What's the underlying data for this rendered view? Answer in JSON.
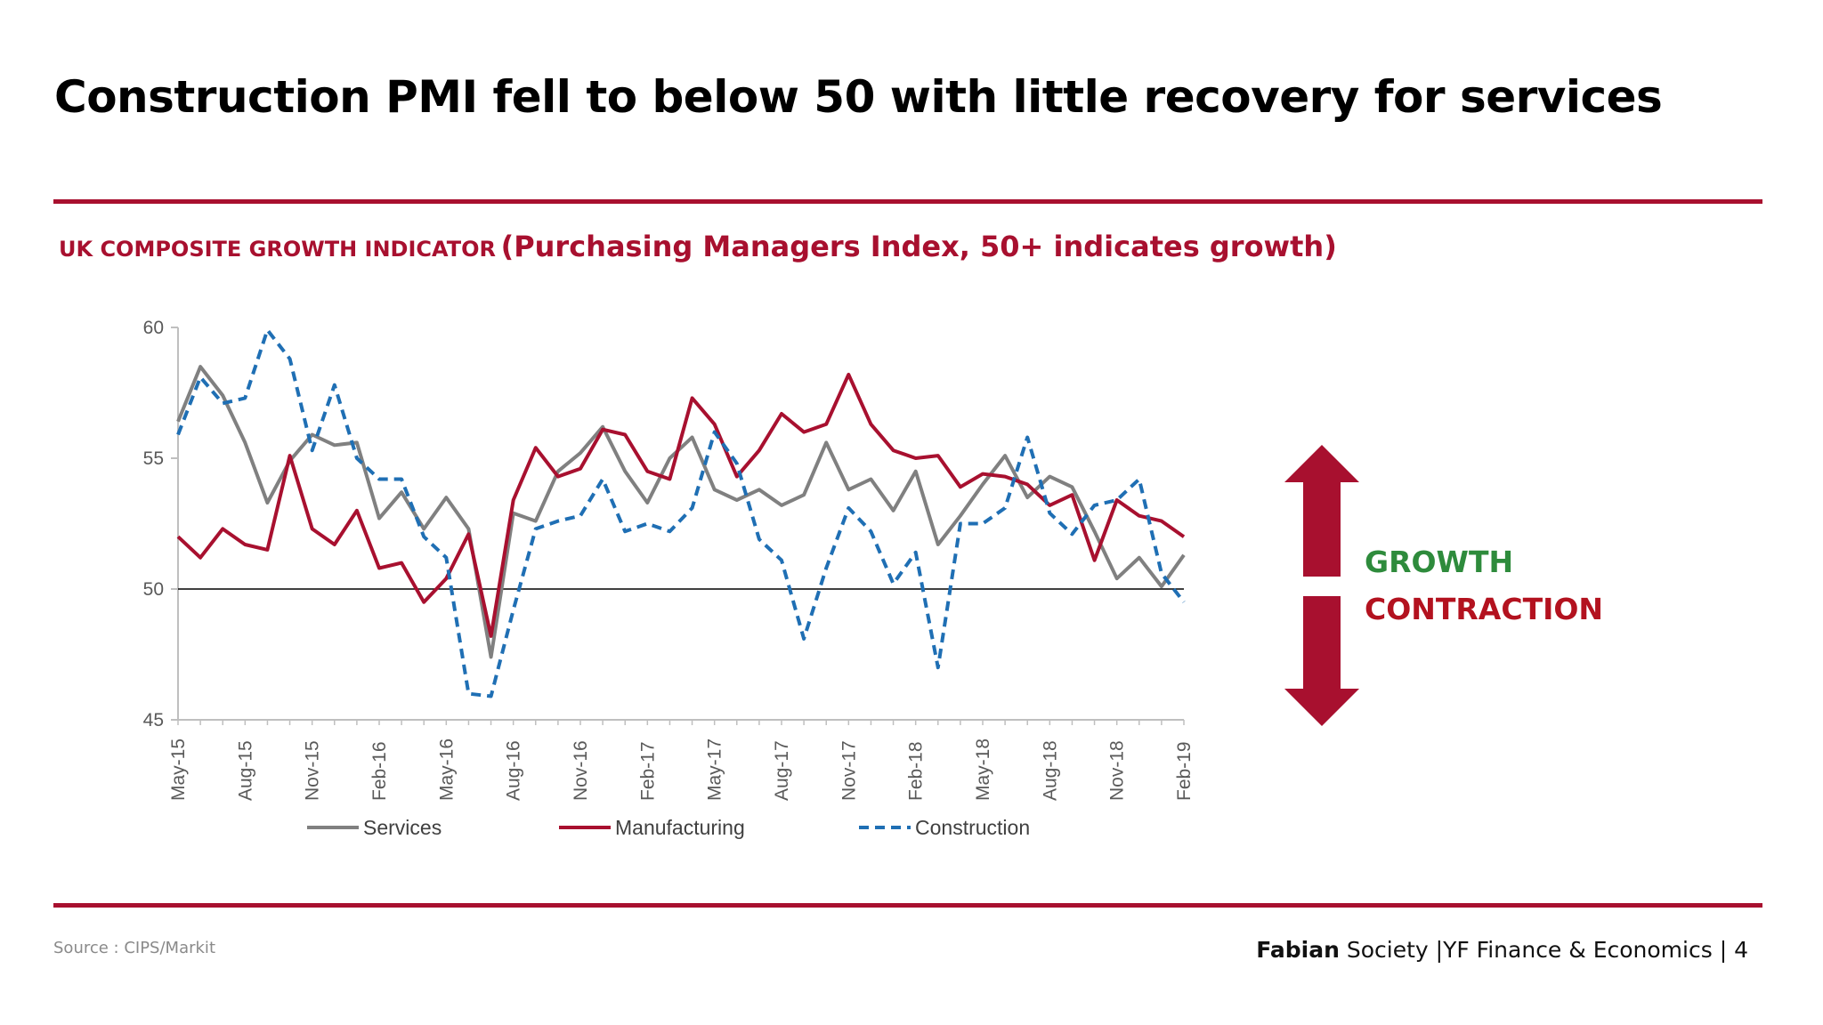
{
  "title": "Construction PMI fell to below 50 with little recovery for services",
  "chart_heading": {
    "caps": "UK COMPOSITE GROWTH INDICATOR",
    "subtitle": "(Purchasing Managers Index, 50+ indicates growth)"
  },
  "indicator": {
    "growth_label": "GROWTH",
    "contraction_label": "CONTRACTION",
    "growth_color": "#2e8b3c",
    "contraction_color": "#b3121f",
    "arrow_color": "#a8102f"
  },
  "source": "Source : CIPS/Markit",
  "footer": {
    "brand_bold": "Fabian",
    "brand_rest": " Society",
    "separator": " |",
    "section": "YF Finance & Economics",
    "separator2": " | ",
    "page_number": "4"
  },
  "chart_data": {
    "type": "line",
    "title": "UK COMPOSITE GROWTH INDICATOR (Purchasing Managers Index, 50+ indicates growth)",
    "xlabel": "",
    "ylabel": "",
    "ylim": [
      45,
      60
    ],
    "yticks": [
      45,
      50,
      55,
      60
    ],
    "reference_line": 50,
    "x_tick_labels": [
      "May-15",
      "Aug-15",
      "Nov-15",
      "Feb-16",
      "May-16",
      "Aug-16",
      "Nov-16",
      "Feb-17",
      "May-17",
      "Aug-17",
      "Nov-17",
      "Feb-18",
      "May-18",
      "Aug-18",
      "Nov-18",
      "Feb-19"
    ],
    "x": [
      "May-15",
      "Jun-15",
      "Jul-15",
      "Aug-15",
      "Sep-15",
      "Oct-15",
      "Nov-15",
      "Dec-15",
      "Jan-16",
      "Feb-16",
      "Mar-16",
      "Apr-16",
      "May-16",
      "Jun-16",
      "Jul-16",
      "Aug-16",
      "Sep-16",
      "Oct-16",
      "Nov-16",
      "Dec-16",
      "Jan-17",
      "Feb-17",
      "Mar-17",
      "Apr-17",
      "May-17",
      "Jun-17",
      "Jul-17",
      "Aug-17",
      "Sep-17",
      "Oct-17",
      "Nov-17",
      "Dec-17",
      "Jan-18",
      "Feb-18",
      "Mar-18",
      "Apr-18",
      "May-18",
      "Jun-18",
      "Jul-18",
      "Aug-18",
      "Sep-18",
      "Oct-18",
      "Nov-18",
      "Dec-18",
      "Jan-19",
      "Feb-19"
    ],
    "legend_position": "bottom",
    "series": [
      {
        "name": "Services",
        "color": "#808080",
        "style": "solid",
        "values": [
          56.4,
          58.5,
          57.4,
          55.6,
          53.3,
          54.9,
          55.9,
          55.5,
          55.6,
          52.7,
          53.7,
          52.3,
          53.5,
          52.3,
          47.4,
          52.9,
          52.6,
          54.5,
          55.2,
          56.2,
          54.5,
          53.3,
          55.0,
          55.8,
          53.8,
          53.4,
          53.8,
          53.2,
          53.6,
          55.6,
          53.8,
          54.2,
          53.0,
          54.5,
          51.7,
          52.8,
          54.0,
          55.1,
          53.5,
          54.3,
          53.9,
          52.2,
          50.4,
          51.2,
          50.1,
          51.3
        ]
      },
      {
        "name": "Manufacturing",
        "color": "#a8102f",
        "style": "solid",
        "values": [
          52.0,
          51.2,
          52.3,
          51.7,
          51.5,
          55.1,
          52.3,
          51.7,
          53.0,
          50.8,
          51.0,
          49.5,
          50.4,
          52.1,
          48.2,
          53.4,
          55.4,
          54.3,
          54.6,
          56.1,
          55.9,
          54.5,
          54.2,
          57.3,
          56.3,
          54.3,
          55.3,
          56.7,
          56.0,
          56.3,
          58.2,
          56.3,
          55.3,
          55.0,
          55.1,
          53.9,
          54.4,
          54.3,
          54.0,
          53.2,
          53.6,
          51.1,
          53.4,
          52.8,
          52.6,
          52.0
        ]
      },
      {
        "name": "Construction",
        "color": "#1f6fb4",
        "style": "dashed",
        "values": [
          55.9,
          58.1,
          57.1,
          57.3,
          59.9,
          58.8,
          55.3,
          57.8,
          55.0,
          54.2,
          54.2,
          52.0,
          51.2,
          46.0,
          45.9,
          49.2,
          52.3,
          52.6,
          52.8,
          54.2,
          52.2,
          52.5,
          52.2,
          53.1,
          56.0,
          54.8,
          51.9,
          51.1,
          48.1,
          50.8,
          53.1,
          52.2,
          50.2,
          51.4,
          47.0,
          52.5,
          52.5,
          53.1,
          55.8,
          52.9,
          52.1,
          53.2,
          53.4,
          54.2,
          50.6,
          49.5
        ]
      }
    ]
  }
}
